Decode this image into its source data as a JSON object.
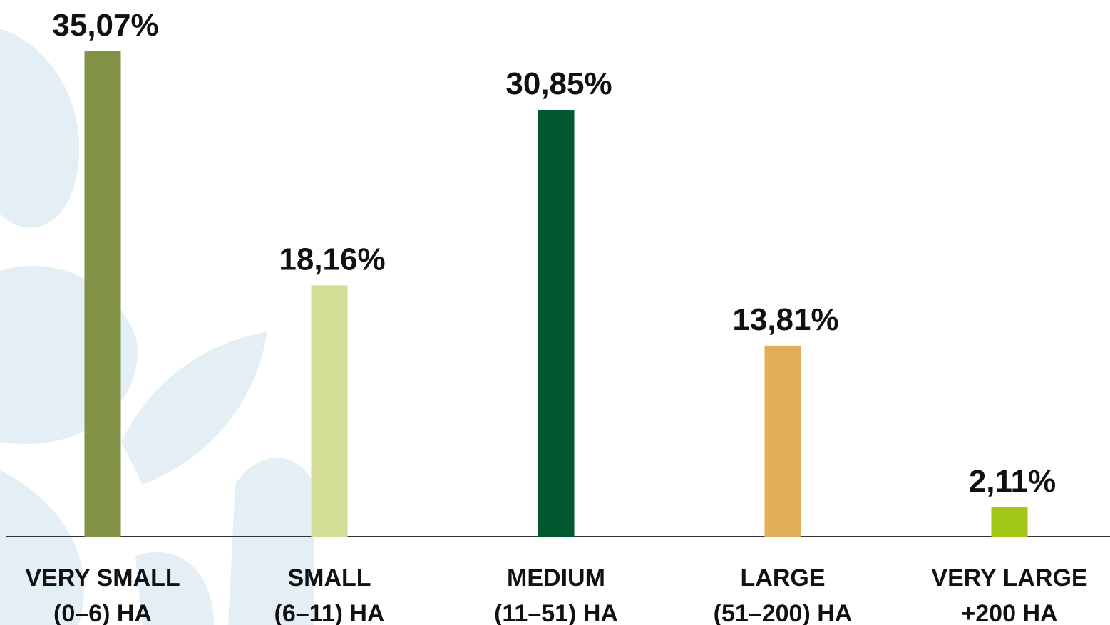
{
  "chart_data": {
    "type": "bar",
    "categories": [
      [
        "VERY SMALL",
        "(0–6) HA"
      ],
      [
        "SMALL",
        "(6–11) HA"
      ],
      [
        "MEDIUM",
        "(11–51) HA"
      ],
      [
        "LARGE",
        "(51–200) HA"
      ],
      [
        "VERY LARGE",
        "+200 HA"
      ]
    ],
    "values": [
      35.07,
      18.16,
      30.85,
      13.81,
      2.11
    ],
    "value_labels": [
      "35,07%",
      "18,16%",
      "30,85%",
      "13,81%",
      "2,11%"
    ],
    "colors": [
      "#819145",
      "#d3dd95",
      "#00592f",
      "#e2ae55",
      "#a2c716"
    ],
    "ylim": [
      0,
      36
    ]
  }
}
